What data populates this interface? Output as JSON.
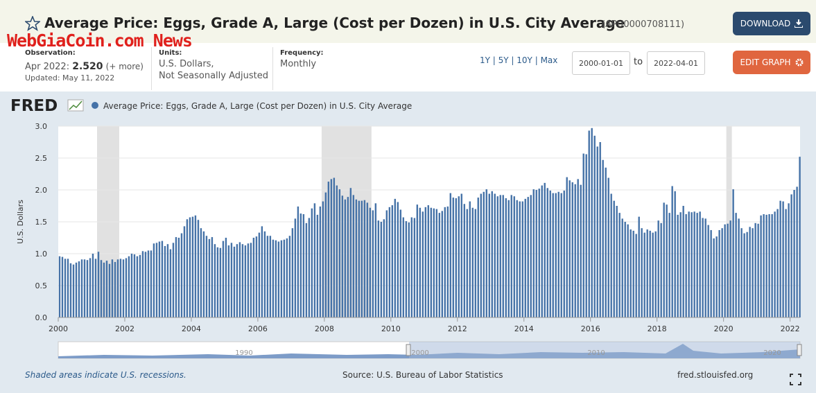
{
  "header": {
    "title": "Average Price: Eggs, Grade A, Large (Cost per Dozen) in U.S. City Average",
    "series_id": "(APU0000708111)",
    "download": "DOWNLOAD",
    "watermark": "WebGiaCoin.com News",
    "observation": {
      "label": "Observation:",
      "period": "Apr 2022:",
      "value": "2.520",
      "more": "(+ more)",
      "updated": "Updated: May 11, 2022"
    },
    "units": {
      "label": "Units:",
      "lines": [
        "U.S. Dollars,",
        "Not Seasonally Adjusted"
      ]
    },
    "frequency": {
      "label": "Frequency:",
      "value": "Monthly"
    },
    "ranges": [
      "1Y",
      "5Y",
      "10Y",
      "Max"
    ],
    "start_date": "2000-01-01",
    "to": "to",
    "end_date": "2022-04-01",
    "edit": "EDIT GRAPH"
  },
  "chart_data": {
    "type": "bar",
    "logo": "FRED",
    "y_label": "U.S. Dollars",
    "grid": true,
    "x": [
      2000,
      2000.083,
      2000.167,
      2000.25,
      2000.333,
      2000.417,
      2000.5,
      2000.583,
      2000.667,
      2000.75,
      2000.833,
      2000.917,
      2001,
      2001.083,
      2001.167,
      2001.25,
      2001.333,
      2001.417,
      2001.5,
      2001.583,
      2001.667,
      2001.75,
      2001.833,
      2001.917,
      2002,
      2002.083,
      2002.167,
      2002.25,
      2002.333,
      2002.417,
      2002.5,
      2002.583,
      2002.667,
      2002.75,
      2002.833,
      2002.917,
      2003,
      2003.083,
      2003.167,
      2003.25,
      2003.333,
      2003.417,
      2003.5,
      2003.583,
      2003.667,
      2003.75,
      2003.833,
      2003.917,
      2004,
      2004.083,
      2004.167,
      2004.25,
      2004.333,
      2004.417,
      2004.5,
      2004.583,
      2004.667,
      2004.75,
      2004.833,
      2004.917,
      2005,
      2005.083,
      2005.167,
      2005.25,
      2005.333,
      2005.417,
      2005.5,
      2005.583,
      2005.667,
      2005.75,
      2005.833,
      2005.917,
      2006,
      2006.083,
      2006.167,
      2006.25,
      2006.333,
      2006.417,
      2006.5,
      2006.583,
      2006.667,
      2006.75,
      2006.833,
      2006.917,
      2007,
      2007.083,
      2007.167,
      2007.25,
      2007.333,
      2007.417,
      2007.5,
      2007.583,
      2007.667,
      2007.75,
      2007.833,
      2007.917,
      2008,
      2008.083,
      2008.167,
      2008.25,
      2008.333,
      2008.417,
      2008.5,
      2008.583,
      2008.667,
      2008.75,
      2008.833,
      2008.917,
      2009,
      2009.083,
      2009.167,
      2009.25,
      2009.333,
      2009.417,
      2009.5,
      2009.583,
      2009.667,
      2009.75,
      2009.833,
      2009.917,
      2010,
      2010.083,
      2010.167,
      2010.25,
      2010.333,
      2010.417,
      2010.5,
      2010.583,
      2010.667,
      2010.75,
      2010.833,
      2010.917,
      2011,
      2011.083,
      2011.167,
      2011.25,
      2011.333,
      2011.417,
      2011.5,
      2011.583,
      2011.667,
      2011.75,
      2011.833,
      2011.917,
      2012,
      2012.083,
      2012.167,
      2012.25,
      2012.333,
      2012.417,
      2012.5,
      2012.583,
      2012.667,
      2012.75,
      2012.833,
      2012.917,
      2013,
      2013.083,
      2013.167,
      2013.25,
      2013.333,
      2013.417,
      2013.5,
      2013.583,
      2013.667,
      2013.75,
      2013.833,
      2013.917,
      2014,
      2014.083,
      2014.167,
      2014.25,
      2014.333,
      2014.417,
      2014.5,
      2014.583,
      2014.667,
      2014.75,
      2014.833,
      2014.917,
      2015,
      2015.083,
      2015.167,
      2015.25,
      2015.333,
      2015.417,
      2015.5,
      2015.583,
      2015.667,
      2015.75,
      2015.833,
      2015.917,
      2016,
      2016.083,
      2016.167,
      2016.25,
      2016.333,
      2016.417,
      2016.5,
      2016.583,
      2016.667,
      2016.75,
      2016.833,
      2016.917,
      2017,
      2017.083,
      2017.167,
      2017.25,
      2017.333,
      2017.417,
      2017.5,
      2017.583,
      2017.667,
      2017.75,
      2017.833,
      2017.917,
      2018,
      2018.083,
      2018.167,
      2018.25,
      2018.333,
      2018.417,
      2018.5,
      2018.583,
      2018.667,
      2018.75,
      2018.833,
      2018.917,
      2019,
      2019.083,
      2019.167,
      2019.25,
      2019.333,
      2019.417,
      2019.5,
      2019.583,
      2019.667,
      2019.75,
      2019.833,
      2019.917,
      2020,
      2020.083,
      2020.167,
      2020.25,
      2020.333,
      2020.417,
      2020.5,
      2020.583,
      2020.667,
      2020.75,
      2020.833,
      2020.917,
      2021,
      2021.083,
      2021.167,
      2021.25,
      2021.333,
      2021.417,
      2021.5,
      2021.583,
      2021.667,
      2021.75,
      2021.833,
      2021.917,
      2022,
      2022.083,
      2022.167,
      2022.25
    ],
    "series": [
      {
        "name": "Average Price: Eggs, Grade A, Large (Cost per Dozen) in U.S. City Average",
        "color": "#4572a7",
        "values": [
          0.96,
          0.95,
          0.92,
          0.92,
          0.85,
          0.83,
          0.86,
          0.88,
          0.91,
          0.91,
          0.9,
          0.93,
          1.0,
          0.92,
          1.03,
          0.9,
          0.86,
          0.89,
          0.84,
          0.91,
          0.87,
          0.91,
          0.92,
          0.91,
          0.93,
          0.96,
          1.0,
          0.99,
          0.96,
          0.98,
          1.04,
          1.03,
          1.05,
          1.05,
          1.16,
          1.17,
          1.19,
          1.2,
          1.12,
          1.15,
          1.07,
          1.17,
          1.26,
          1.25,
          1.32,
          1.43,
          1.54,
          1.57,
          1.58,
          1.6,
          1.53,
          1.4,
          1.35,
          1.28,
          1.23,
          1.26,
          1.15,
          1.1,
          1.09,
          1.2,
          1.25,
          1.13,
          1.17,
          1.11,
          1.15,
          1.18,
          1.15,
          1.13,
          1.16,
          1.17,
          1.25,
          1.27,
          1.33,
          1.43,
          1.35,
          1.28,
          1.28,
          1.22,
          1.21,
          1.19,
          1.21,
          1.22,
          1.24,
          1.28,
          1.4,
          1.55,
          1.74,
          1.63,
          1.62,
          1.48,
          1.56,
          1.71,
          1.79,
          1.61,
          1.74,
          1.82,
          1.96,
          2.13,
          2.17,
          2.19,
          2.07,
          2.01,
          1.91,
          1.85,
          1.89,
          2.03,
          1.92,
          1.85,
          1.83,
          1.83,
          1.84,
          1.8,
          1.72,
          1.68,
          1.79,
          1.52,
          1.5,
          1.54,
          1.68,
          1.73,
          1.76,
          1.86,
          1.81,
          1.69,
          1.57,
          1.51,
          1.49,
          1.57,
          1.56,
          1.77,
          1.72,
          1.66,
          1.73,
          1.76,
          1.72,
          1.71,
          1.7,
          1.64,
          1.67,
          1.73,
          1.74,
          1.95,
          1.88,
          1.87,
          1.9,
          1.94,
          1.78,
          1.7,
          1.82,
          1.72,
          1.7,
          1.88,
          1.94,
          1.97,
          2.01,
          1.94,
          1.98,
          1.94,
          1.9,
          1.92,
          1.92,
          1.87,
          1.84,
          1.92,
          1.9,
          1.84,
          1.82,
          1.82,
          1.86,
          1.89,
          1.92,
          2.01,
          2.0,
          2.02,
          2.07,
          2.11,
          2.03,
          1.99,
          1.95,
          1.95,
          1.97,
          1.95,
          1.99,
          2.2,
          2.15,
          2.12,
          2.09,
          2.17,
          2.08,
          2.57,
          2.56,
          2.93,
          2.97,
          2.85,
          2.68,
          2.75,
          2.47,
          2.35,
          2.19,
          1.94,
          1.83,
          1.75,
          1.64,
          1.55,
          1.5,
          1.46,
          1.38,
          1.36,
          1.31,
          1.58,
          1.4,
          1.33,
          1.38,
          1.36,
          1.33,
          1.35,
          1.52,
          1.48,
          1.8,
          1.77,
          1.64,
          2.06,
          1.98,
          1.61,
          1.65,
          1.75,
          1.62,
          1.66,
          1.65,
          1.66,
          1.64,
          1.66,
          1.56,
          1.55,
          1.45,
          1.37,
          1.24,
          1.27,
          1.37,
          1.4,
          1.46,
          1.47,
          1.52,
          2.01,
          1.64,
          1.55,
          1.4,
          1.32,
          1.34,
          1.42,
          1.4,
          1.48,
          1.47,
          1.6,
          1.62,
          1.61,
          1.62,
          1.62,
          1.66,
          1.7,
          1.83,
          1.82,
          1.7,
          1.79,
          1.93,
          2.0,
          2.05,
          2.52
        ]
      }
    ],
    "xlim": [
      2000,
      2022.3
    ],
    "xticks": [
      2000,
      2002,
      2004,
      2006,
      2008,
      2010,
      2012,
      2014,
      2016,
      2018,
      2020,
      2022
    ],
    "ylim": [
      0,
      3
    ],
    "yticks": [
      {
        "value": 0,
        "label": "0.0"
      },
      {
        "value": 0.5,
        "label": "0.5"
      },
      {
        "value": 1,
        "label": "1.0"
      },
      {
        "value": 1.5,
        "label": "1.5"
      },
      {
        "value": 2,
        "label": "2.0"
      },
      {
        "value": 2.5,
        "label": "2.5"
      },
      {
        "value": 3,
        "label": "3.0"
      }
    ],
    "recessions": [
      [
        2001.167,
        2001.833
      ],
      [
        2007.917,
        2009.417
      ],
      [
        2020.083,
        2020.25
      ]
    ],
    "navigator_labels": [
      "1990",
      "2000",
      "2010",
      "2020"
    ],
    "note": "Shaded areas indicate U.S. recessions.",
    "source": "Source: U.S. Bureau of Labor Statistics",
    "site": "fred.stlouisfed.org"
  }
}
